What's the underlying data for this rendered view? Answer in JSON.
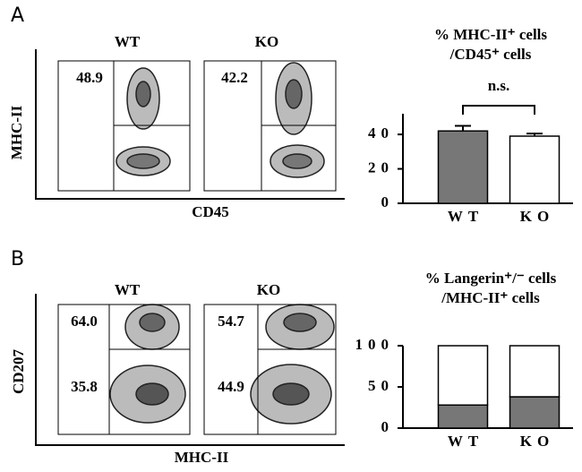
{
  "panels": [
    {
      "letter": "A",
      "x_label": "CD45",
      "y_label": "MHC-II",
      "plots": [
        {
          "title": "WT",
          "gates": [
            "48.9"
          ]
        },
        {
          "title": "KO",
          "gates": [
            "42.2"
          ]
        }
      ]
    },
    {
      "letter": "B",
      "x_label": "MHC-II",
      "y_label": "CD207",
      "plots": [
        {
          "title": "WT",
          "gates": [
            "64.0",
            "35.8"
          ]
        },
        {
          "title": "KO",
          "gates": [
            "54.7",
            "44.9"
          ]
        }
      ]
    }
  ],
  "chart_data": [
    {
      "type": "bar",
      "title": [
        "% MHC-II⁺ cells",
        "/CD45⁺ cells"
      ],
      "annotation": "n.s.",
      "categories": [
        "WT",
        "KO"
      ],
      "values": [
        42,
        39
      ],
      "errors": [
        3,
        1.5
      ],
      "colors": [
        "#777777",
        "#ffffff"
      ],
      "ylim": [
        0,
        52
      ],
      "yticks": [
        0,
        20,
        40
      ]
    },
    {
      "type": "stacked_bar",
      "title": [
        "% Langerin⁺/⁻ cells",
        "/MHC-II⁺ cells"
      ],
      "categories": [
        "WT",
        "KO"
      ],
      "series": [
        {
          "color": "#777777",
          "values": [
            28,
            38
          ]
        },
        {
          "color": "#ffffff",
          "values": [
            72,
            62
          ]
        }
      ],
      "ylim": [
        0,
        100
      ],
      "yticks": [
        0,
        50,
        100
      ]
    }
  ]
}
